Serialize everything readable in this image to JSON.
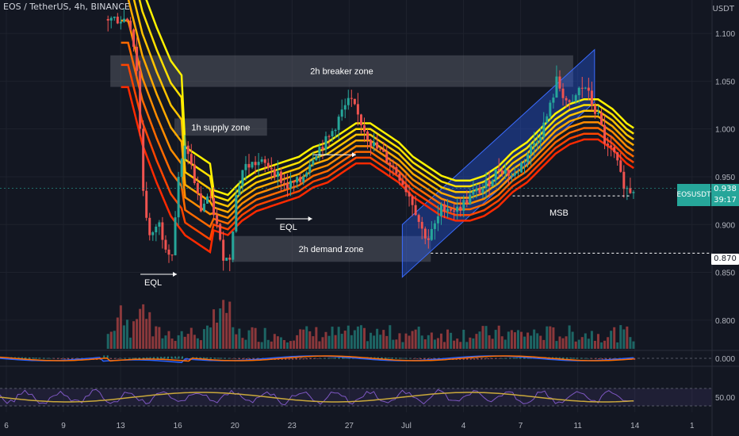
{
  "header": {
    "title": "EOS / TetherUS, 4h, BINANCE",
    "currency": "USDT"
  },
  "current": {
    "symbol": "EOSUSDT",
    "price": "0.938",
    "timer": "39:17",
    "level_label": "0.870"
  },
  "colors": {
    "background": "#131722",
    "grid": "#1e222d",
    "up": "#26a69a",
    "down": "#ef5350",
    "zone": "rgba(120,123,134,0.35)",
    "channel": "rgba(41,98,255,0.35)",
    "rsi": "#c9a83b",
    "macd": "#2962ff",
    "signal": "#ff6d00",
    "ribbon": [
      "#ff2a00",
      "#ff4500",
      "#ff6a00",
      "#ff8c00",
      "#ffaa00",
      "#ffc400",
      "#ffe000",
      "#fff200"
    ]
  },
  "chart_data": {
    "type": "candlestick",
    "price_axis": {
      "ticks": [
        "1.100",
        "1.050",
        "1.000",
        "0.950",
        "0.900",
        "0.850",
        "0.800"
      ],
      "range": [
        0.77,
        1.12
      ]
    },
    "indicator_axes": {
      "macd_tick": "0.000",
      "rsi_tick": "50.00"
    },
    "x_axis": {
      "ticks": [
        "6",
        "9",
        "13",
        "16",
        "20",
        "23",
        "27",
        "Jul",
        "4",
        "7",
        "11",
        "14",
        "1"
      ],
      "range": [
        0,
        100
      ]
    },
    "price_path": [
      {
        "t": 18,
        "p": 1.115
      },
      {
        "t": 19,
        "p": 1.07
      },
      {
        "t": 20,
        "p": 0.93
      },
      {
        "t": 21,
        "p": 0.88
      },
      {
        "t": 22,
        "p": 0.905
      },
      {
        "t": 23,
        "p": 0.88
      },
      {
        "t": 24,
        "p": 0.87
      },
      {
        "t": 25,
        "p": 0.955
      },
      {
        "t": 26,
        "p": 0.985
      },
      {
        "t": 27,
        "p": 0.95
      },
      {
        "t": 28,
        "p": 0.915
      },
      {
        "t": 29,
        "p": 0.93
      },
      {
        "t": 30,
        "p": 0.91
      },
      {
        "t": 31,
        "p": 0.87
      },
      {
        "t": 32,
        "p": 0.86
      },
      {
        "t": 33,
        "p": 0.93
      },
      {
        "t": 34,
        "p": 0.96
      },
      {
        "t": 36,
        "p": 0.965
      },
      {
        "t": 38,
        "p": 0.96
      },
      {
        "t": 40,
        "p": 0.94
      },
      {
        "t": 42,
        "p": 0.945
      },
      {
        "t": 44,
        "p": 0.975
      },
      {
        "t": 46,
        "p": 0.99
      },
      {
        "t": 48,
        "p": 1.02
      },
      {
        "t": 49,
        "p": 1.03
      },
      {
        "t": 50,
        "p": 1.015
      },
      {
        "t": 52,
        "p": 0.985
      },
      {
        "t": 54,
        "p": 0.97
      },
      {
        "t": 56,
        "p": 0.95
      },
      {
        "t": 58,
        "p": 0.92
      },
      {
        "t": 59,
        "p": 0.895
      },
      {
        "t": 60,
        "p": 0.885
      },
      {
        "t": 61,
        "p": 0.9
      },
      {
        "t": 62,
        "p": 0.92
      },
      {
        "t": 64,
        "p": 0.915
      },
      {
        "t": 66,
        "p": 0.93
      },
      {
        "t": 68,
        "p": 0.94
      },
      {
        "t": 70,
        "p": 0.96
      },
      {
        "t": 72,
        "p": 0.95
      },
      {
        "t": 74,
        "p": 0.975
      },
      {
        "t": 76,
        "p": 1.0
      },
      {
        "t": 77,
        "p": 1.02
      },
      {
        "t": 78,
        "p": 1.05
      },
      {
        "t": 79,
        "p": 1.035
      },
      {
        "t": 80,
        "p": 1.02
      },
      {
        "t": 81,
        "p": 1.04
      },
      {
        "t": 82,
        "p": 1.045
      },
      {
        "t": 83,
        "p": 1.025
      },
      {
        "t": 84,
        "p": 1.01
      },
      {
        "t": 85,
        "p": 0.98
      },
      {
        "t": 86,
        "p": 0.975
      },
      {
        "t": 87,
        "p": 0.95
      },
      {
        "t": 88,
        "p": 0.935
      },
      {
        "t": 89,
        "p": 0.938
      }
    ],
    "ribbon_base": [
      {
        "t": 18,
        "p": 1.09
      },
      {
        "t": 20,
        "p": 1.03
      },
      {
        "t": 22,
        "p": 0.99
      },
      {
        "t": 24,
        "p": 0.955
      },
      {
        "t": 26,
        "p": 0.935
      },
      {
        "t": 28,
        "p": 0.925
      },
      {
        "t": 30,
        "p": 0.915
      },
      {
        "t": 32,
        "p": 0.91
      },
      {
        "t": 34,
        "p": 0.925
      },
      {
        "t": 36,
        "p": 0.935
      },
      {
        "t": 38,
        "p": 0.94
      },
      {
        "t": 40,
        "p": 0.945
      },
      {
        "t": 42,
        "p": 0.95
      },
      {
        "t": 44,
        "p": 0.96
      },
      {
        "t": 46,
        "p": 0.965
      },
      {
        "t": 48,
        "p": 0.975
      },
      {
        "t": 50,
        "p": 0.985
      },
      {
        "t": 52,
        "p": 0.985
      },
      {
        "t": 54,
        "p": 0.975
      },
      {
        "t": 56,
        "p": 0.965
      },
      {
        "t": 58,
        "p": 0.95
      },
      {
        "t": 60,
        "p": 0.94
      },
      {
        "t": 62,
        "p": 0.93
      },
      {
        "t": 64,
        "p": 0.925
      },
      {
        "t": 66,
        "p": 0.925
      },
      {
        "t": 68,
        "p": 0.93
      },
      {
        "t": 70,
        "p": 0.94
      },
      {
        "t": 72,
        "p": 0.955
      },
      {
        "t": 74,
        "p": 0.965
      },
      {
        "t": 76,
        "p": 0.98
      },
      {
        "t": 78,
        "p": 0.995
      },
      {
        "t": 80,
        "p": 1.005
      },
      {
        "t": 82,
        "p": 1.01
      },
      {
        "t": 84,
        "p": 1.01
      },
      {
        "t": 86,
        "p": 1.0
      },
      {
        "t": 88,
        "p": 0.985
      },
      {
        "t": 89,
        "p": 0.98
      }
    ],
    "zones": [
      {
        "label": "2h breaker zone",
        "t1": 15.5,
        "t2": 80.5,
        "p1": 1.044,
        "p2": 1.077
      },
      {
        "label": "1h supply zone",
        "t1": 24.5,
        "t2": 37.5,
        "p1": 0.993,
        "p2": 1.011
      },
      {
        "label": "2h demand zone",
        "t1": 32.5,
        "t2": 60.5,
        "p1": 0.861,
        "p2": 0.888
      }
    ],
    "annotations": [
      {
        "label": "EQL",
        "t": 21.5,
        "p": 0.848
      },
      {
        "label": "EQL",
        "t": 40.5,
        "p": 0.906
      },
      {
        "label": "MSB",
        "t": 78.5,
        "p": 0.921
      }
    ],
    "level": 0.87,
    "msb_level": 0.93
  }
}
